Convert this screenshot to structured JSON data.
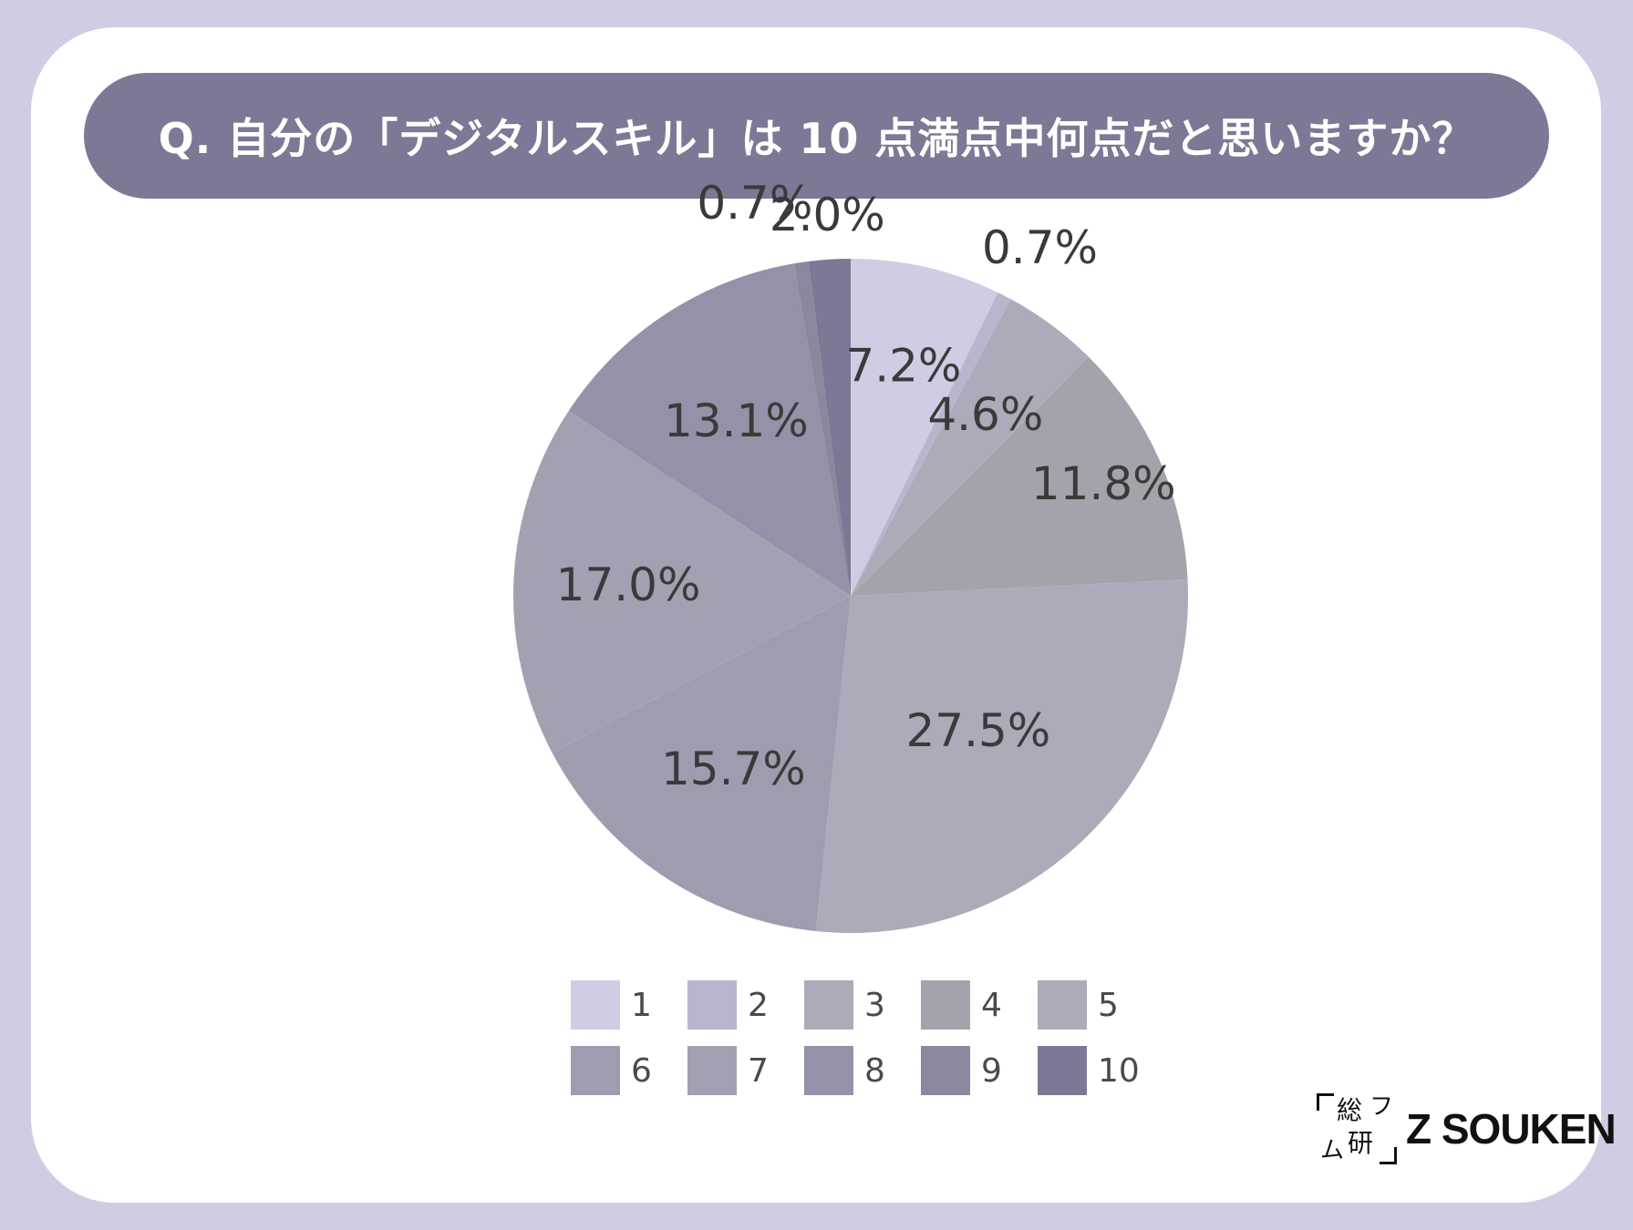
{
  "question": "Q. 自分の「デジタルスキル」は 10 点満点中何点だと思いますか？",
  "chart_data": {
    "type": "pie",
    "title": "",
    "categories": [
      "1",
      "2",
      "3",
      "4",
      "5",
      "6",
      "7",
      "8",
      "9",
      "10"
    ],
    "values": [
      7.2,
      0.7,
      4.6,
      11.8,
      27.5,
      15.7,
      17.0,
      13.1,
      0.7,
      2.0
    ],
    "labels": [
      "7.2%",
      "0.7%",
      "4.6%",
      "11.8%",
      "27.5%",
      "15.7%",
      "17.0%",
      "13.1%",
      "0.7%",
      "2.0%"
    ],
    "colors": [
      "#cfcde3",
      "#b8b6cf",
      "#acabba",
      "#a4a3ac",
      "#acabba",
      "#9e9db0",
      "#a2a1b2",
      "#9392a8",
      "#8a889f",
      "#7b7995"
    ],
    "legend_position": "bottom",
    "start_angle_deg": 0,
    "direction": "clockwise"
  },
  "logo": {
    "mark_kanji_top": "総",
    "mark_kanji_bottom": "研",
    "text": "Z SOUKEN"
  }
}
